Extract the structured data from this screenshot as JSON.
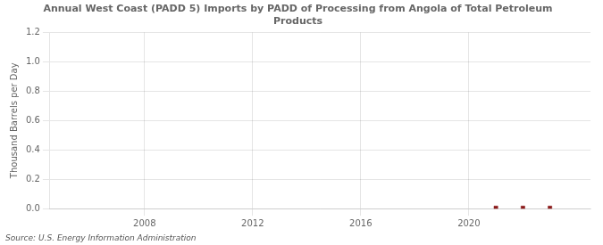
{
  "chart_data": {
    "type": "scatter",
    "title": "Annual West Coast (PADD 5) Imports by PADD of Processing from Angola of Total Petroleum\nProducts",
    "ylabel": "Thousand Barrels per Day",
    "annotation": "Source: U.S. Energy Information Administration",
    "x": [
      2021,
      2022,
      2023
    ],
    "values": [
      0.005,
      0.005,
      0.005
    ],
    "color": "#8b1a1a",
    "marker": "square",
    "xlim": [
      2004.5,
      2024.5
    ],
    "xticks": [
      2008,
      2012,
      2016,
      2020
    ],
    "ylim": [
      0,
      1.2
    ],
    "yticks": [
      {
        "value": 0,
        "label": "0.0"
      },
      0.2,
      0.4,
      0.6,
      0.8,
      {
        "value": 1,
        "label": "1.0"
      },
      1.2
    ],
    "grid": true
  }
}
